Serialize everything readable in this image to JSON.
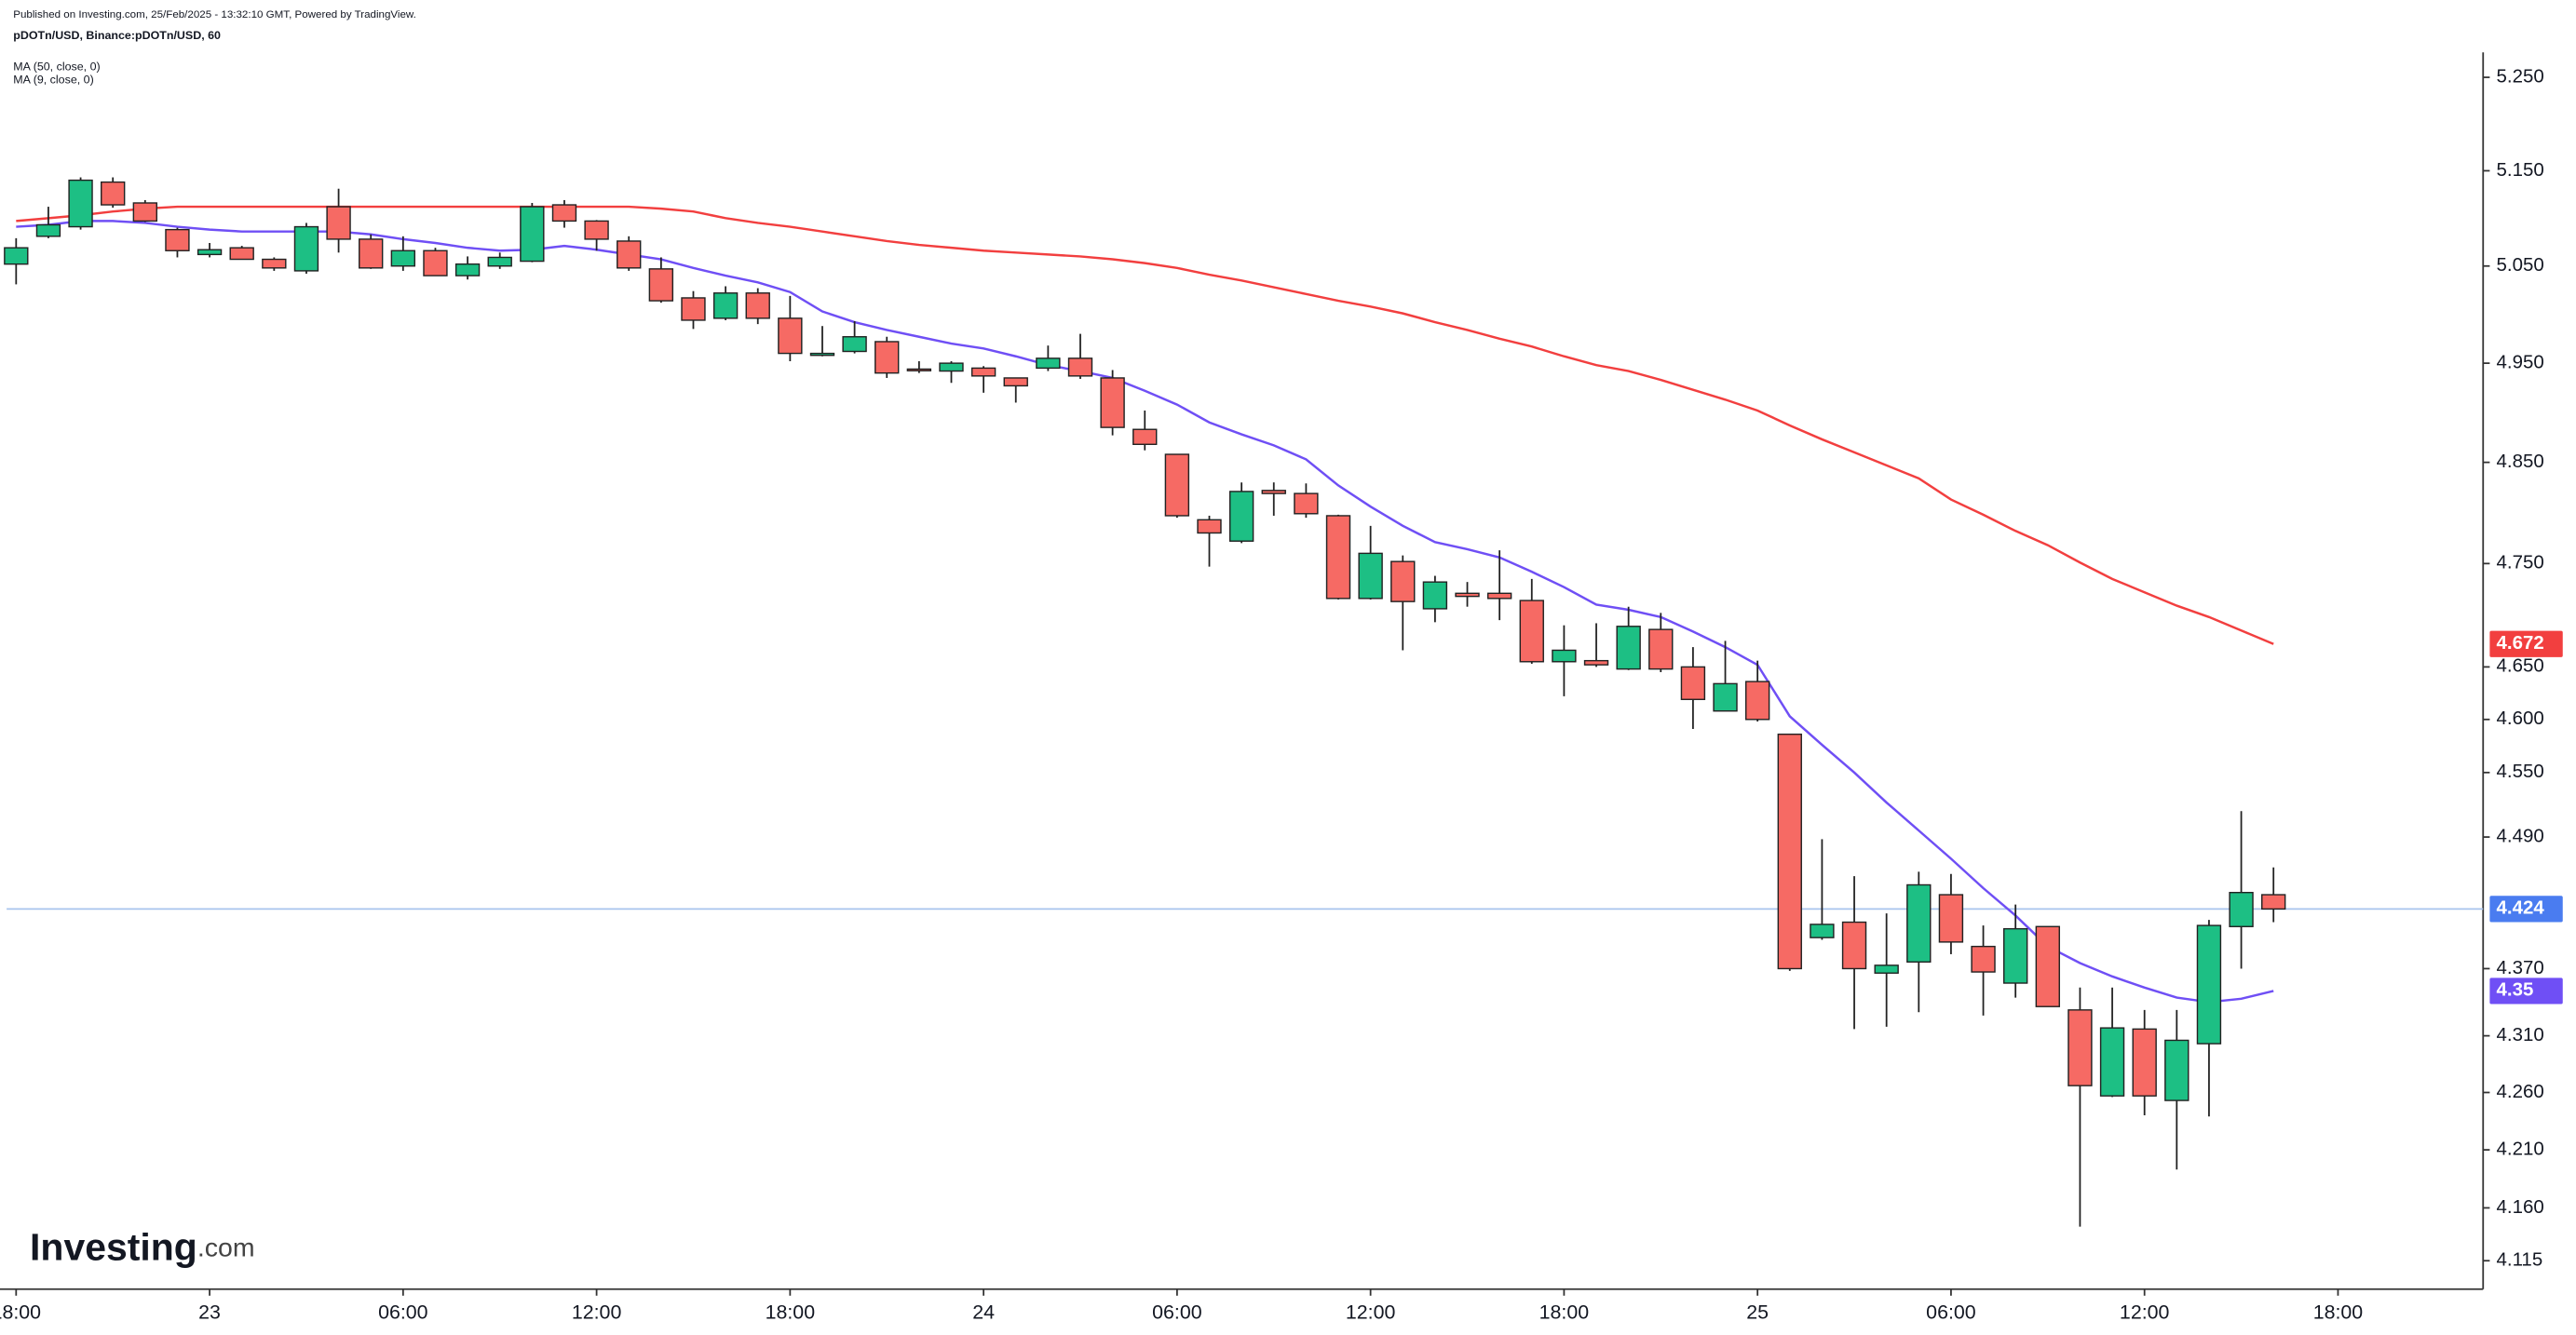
{
  "header": {
    "published": "Published on Investing.com, 25/Feb/2025 - 13:32:10 GMT, Powered by TradingView.",
    "logo": {
      "word": "Investing",
      "suffix": ".com"
    }
  },
  "chart_data": {
    "type": "candlestick",
    "title": "pDOTn/USD, Binance:pDOTn/USD, 60",
    "categories": [
      "18:00",
      null,
      null,
      null,
      null,
      null,
      "23",
      null,
      null,
      null,
      null,
      null,
      "06:00",
      null,
      null,
      null,
      null,
      null,
      "12:00",
      null,
      null,
      null,
      null,
      null,
      "18:00",
      null,
      null,
      null,
      null,
      null,
      "24",
      null,
      null,
      null,
      null,
      null,
      "06:00",
      null,
      null,
      null,
      null,
      null,
      "12:00",
      null,
      null,
      null,
      null,
      null,
      "18:00",
      null,
      null,
      null,
      null,
      null,
      "25",
      null,
      null,
      null,
      null,
      null,
      "06:00",
      null,
      null,
      null,
      null,
      null,
      "12:00",
      null,
      null,
      null,
      null,
      null,
      "18:00",
      null,
      null,
      null,
      null
    ],
    "open": [
      5.052,
      5.081,
      5.091,
      5.138,
      5.116,
      5.088,
      5.062,
      5.069,
      5.057,
      5.045,
      5.112,
      5.078,
      5.05,
      5.066,
      5.04,
      5.05,
      5.055,
      5.114,
      5.097,
      5.076,
      5.047,
      5.017,
      4.996,
      5.022,
      4.996,
      4.958,
      4.962,
      4.972,
      4.944,
      4.942,
      4.945,
      4.935,
      4.945,
      4.955,
      4.935,
      4.883,
      4.858,
      4.793,
      4.772,
      4.822,
      4.819,
      4.797,
      4.716,
      4.752,
      4.706,
      4.721,
      4.721,
      4.714,
      4.655,
      4.656,
      4.648,
      4.686,
      4.65,
      4.608,
      4.636,
      4.586,
      4.398,
      4.412,
      4.366,
      4.376,
      4.437,
      4.39,
      4.357,
      4.408,
      4.333,
      4.257,
      4.316,
      4.253,
      4.303,
      4.408,
      4.437,
      null,
      null,
      null,
      null,
      null,
      null
    ],
    "high": [
      5.079,
      5.112,
      5.143,
      5.143,
      5.119,
      5.09,
      5.074,
      5.071,
      5.059,
      5.095,
      5.131,
      5.083,
      5.081,
      5.069,
      5.06,
      5.064,
      5.116,
      5.119,
      5.098,
      5.081,
      5.059,
      5.024,
      5.029,
      5.027,
      5.019,
      4.988,
      4.993,
      4.977,
      4.952,
      4.952,
      4.947,
      4.935,
      4.968,
      4.98,
      4.943,
      4.902,
      4.858,
      4.797,
      4.83,
      4.83,
      4.829,
      4.798,
      4.787,
      4.758,
      4.738,
      4.732,
      4.763,
      4.735,
      4.69,
      4.692,
      4.708,
      4.702,
      4.669,
      4.675,
      4.656,
      4.586,
      4.488,
      4.454,
      4.42,
      4.458,
      4.456,
      4.409,
      4.428,
      4.408,
      4.353,
      4.353,
      4.333,
      4.333,
      4.414,
      4.514,
      4.462,
      null,
      null,
      null,
      null,
      null,
      null
    ],
    "low": [
      5.031,
      5.079,
      5.088,
      5.111,
      5.096,
      5.059,
      5.059,
      5.057,
      5.045,
      5.042,
      5.064,
      5.047,
      5.045,
      5.04,
      5.036,
      5.047,
      5.054,
      5.09,
      5.066,
      5.045,
      5.012,
      4.985,
      4.994,
      4.99,
      4.952,
      4.957,
      4.96,
      4.935,
      4.94,
      4.93,
      4.92,
      4.91,
      4.942,
      4.934,
      4.877,
      4.862,
      4.795,
      4.747,
      4.77,
      4.797,
      4.795,
      4.715,
      4.715,
      4.666,
      4.693,
      4.708,
      4.695,
      4.653,
      4.622,
      4.65,
      4.647,
      4.645,
      4.591,
      4.608,
      4.598,
      4.368,
      4.396,
      4.316,
      4.318,
      4.331,
      4.383,
      4.328,
      4.344,
      4.336,
      4.144,
      4.256,
      4.24,
      4.193,
      4.239,
      4.37,
      4.412,
      null,
      null,
      null,
      null,
      null,
      null
    ],
    "close": [
      5.069,
      5.093,
      5.14,
      5.114,
      5.097,
      5.066,
      5.067,
      5.057,
      5.048,
      5.091,
      5.078,
      5.048,
      5.066,
      5.04,
      5.052,
      5.059,
      5.112,
      5.097,
      5.078,
      5.048,
      5.014,
      4.994,
      5.022,
      4.996,
      4.96,
      4.96,
      4.977,
      4.94,
      4.943,
      4.95,
      4.937,
      4.927,
      4.955,
      4.937,
      4.885,
      4.868,
      4.797,
      4.78,
      4.821,
      4.819,
      4.799,
      4.716,
      4.76,
      4.713,
      4.732,
      4.718,
      4.716,
      4.655,
      4.666,
      4.652,
      4.689,
      4.648,
      4.619,
      4.634,
      4.6,
      4.37,
      4.41,
      4.37,
      4.373,
      4.446,
      4.394,
      4.367,
      4.406,
      4.336,
      4.266,
      4.317,
      4.257,
      4.306,
      4.409,
      4.439,
      4.424,
      null,
      null,
      null,
      null,
      null,
      null
    ],
    "up_color": "#1dbf84",
    "down_color": "#f66a64",
    "series": [
      {
        "name": "MA (50, close, 0)",
        "color": "#f23f3f",
        "values": [
          5.097,
          5.1,
          5.103,
          5.107,
          5.11,
          5.112,
          5.112,
          5.112,
          5.112,
          5.112,
          5.112,
          5.112,
          5.112,
          5.112,
          5.112,
          5.112,
          5.112,
          5.112,
          5.112,
          5.112,
          5.11,
          5.107,
          5.1,
          5.095,
          5.091,
          5.086,
          5.081,
          5.076,
          5.072,
          5.069,
          5.066,
          5.064,
          5.062,
          5.06,
          5.057,
          5.053,
          5.048,
          5.041,
          5.035,
          5.028,
          5.021,
          5.014,
          5.008,
          5.001,
          4.992,
          4.984,
          4.975,
          4.967,
          4.957,
          4.948,
          4.942,
          4.933,
          4.923,
          4.913,
          4.902,
          4.887,
          4.873,
          4.86,
          4.847,
          4.834,
          4.813,
          4.798,
          4.782,
          4.768,
          4.751,
          4.735,
          4.722,
          4.709,
          4.698,
          4.685,
          4.672,
          null,
          null,
          null,
          null,
          null,
          null
        ]
      },
      {
        "name": "MA (9, close, 0)",
        "color": "#6f4ff5",
        "values": [
          5.091,
          5.093,
          5.097,
          5.097,
          5.095,
          5.091,
          5.088,
          5.086,
          5.086,
          5.086,
          5.086,
          5.083,
          5.078,
          5.074,
          5.069,
          5.066,
          5.067,
          5.071,
          5.067,
          5.062,
          5.057,
          5.048,
          5.04,
          5.033,
          5.023,
          5.003,
          4.992,
          4.984,
          4.977,
          4.97,
          4.965,
          4.957,
          4.948,
          4.942,
          4.935,
          4.922,
          4.908,
          4.89,
          4.878,
          4.867,
          4.853,
          4.827,
          4.806,
          4.787,
          4.771,
          4.764,
          4.756,
          4.742,
          4.727,
          4.71,
          4.705,
          4.698,
          4.684,
          4.669,
          4.652,
          4.603,
          4.576,
          4.55,
          4.522,
          4.496,
          4.47,
          4.443,
          4.418,
          4.39,
          4.375,
          4.363,
          4.353,
          4.344,
          4.34,
          4.343,
          4.35,
          null,
          null,
          null,
          null,
          null,
          null
        ]
      }
    ],
    "current_price": 4.424,
    "current_price_color": "#4a7cf0",
    "log_scale": true,
    "ylim": [
      4.091,
      5.277
    ],
    "yticks": [
      {
        "value": 5.25,
        "label": "5.250"
      },
      {
        "value": 5.15,
        "label": "5.150"
      },
      {
        "value": 5.05,
        "label": "5.050"
      },
      {
        "value": 4.95,
        "label": "4.950"
      },
      {
        "value": 4.85,
        "label": "4.850"
      },
      {
        "value": 4.75,
        "label": "4.750"
      },
      {
        "value": 4.65,
        "label": "4.650"
      },
      {
        "value": 4.6,
        "label": "4.600"
      },
      {
        "value": 4.55,
        "label": "4.550"
      },
      {
        "value": 4.49,
        "label": "4.490"
      },
      {
        "value": 4.37,
        "label": "4.370"
      },
      {
        "value": 4.31,
        "label": "4.310"
      },
      {
        "value": 4.26,
        "label": "4.260"
      },
      {
        "value": 4.21,
        "label": "4.210"
      },
      {
        "value": 4.16,
        "label": "4.160"
      },
      4.115
    ]
  }
}
